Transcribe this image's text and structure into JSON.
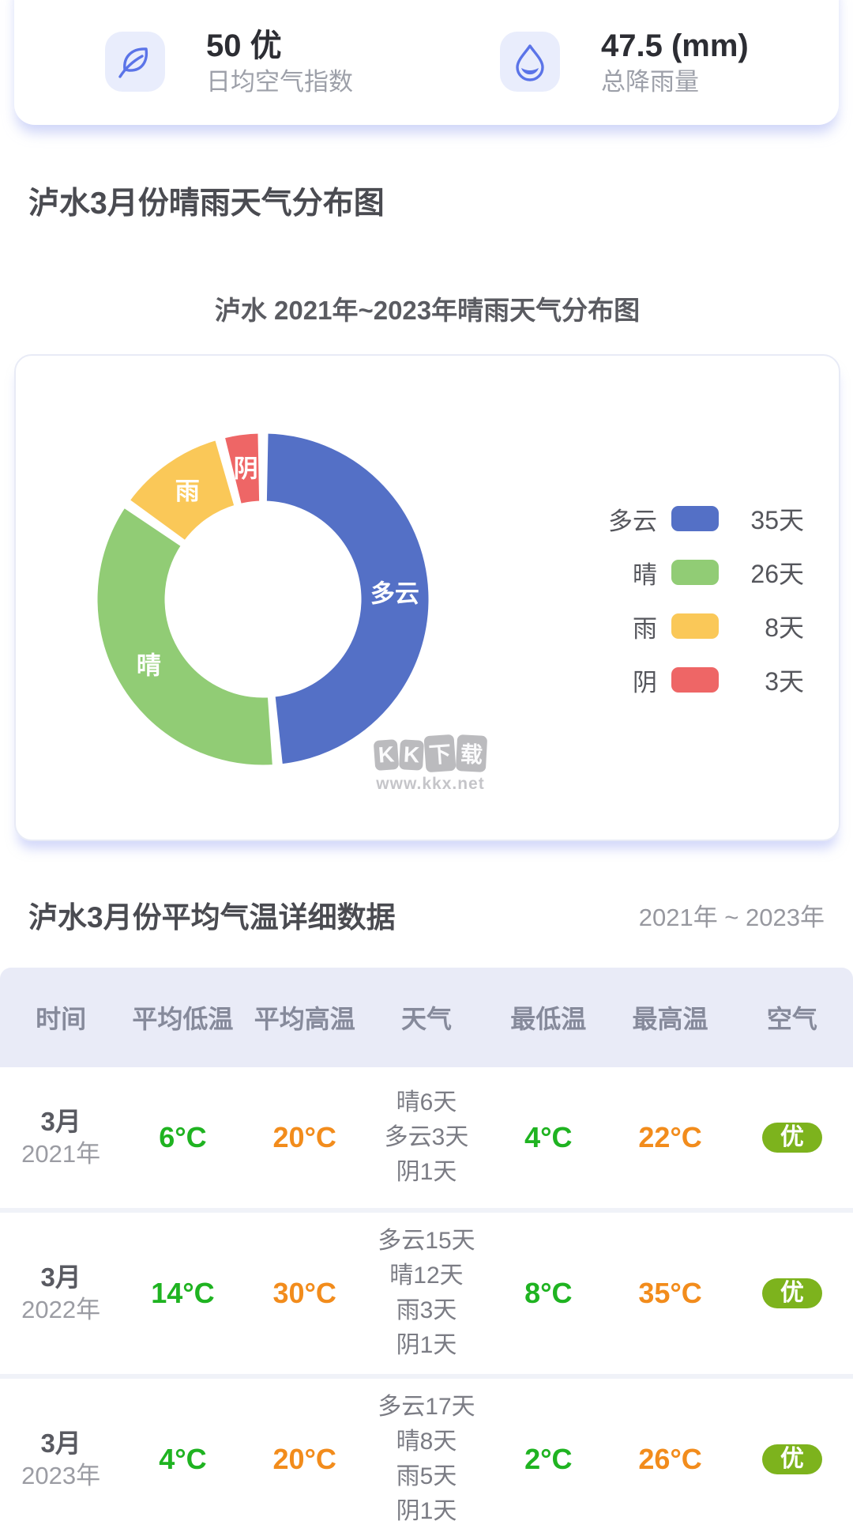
{
  "stats_card": {
    "air_quality": {
      "value": "50 优",
      "label": "日均空气指数"
    },
    "rainfall": {
      "value": "47.5 (mm)",
      "label": "总降雨量"
    }
  },
  "distribution_section": {
    "title": "泸水3月份晴雨天气分布图",
    "chart_title": "泸水 2021年~2023年晴雨天气分布图"
  },
  "chart_data": {
    "type": "pie",
    "title": "泸水 2021年~2023年晴雨天气分布图",
    "donut": true,
    "legend_position": "right",
    "unit": "天",
    "series": [
      {
        "name": "多云",
        "value": 35,
        "label": "35天",
        "color": "#5470c6"
      },
      {
        "name": "晴",
        "value": 26,
        "label": "26天",
        "color": "#91cc75"
      },
      {
        "name": "雨",
        "value": 8,
        "label": "8天",
        "color": "#fac858"
      },
      {
        "name": "阴",
        "value": 3,
        "label": "3天",
        "color": "#ee6666"
      }
    ]
  },
  "watermark": {
    "title": "KK下载",
    "url": "www.kkx.net"
  },
  "temperature_section": {
    "title": "泸水3月份平均气温详细数据",
    "year_range": "2021年 ~ 2023年"
  },
  "table": {
    "headers": [
      "时间",
      "平均低温",
      "平均高温",
      "天气",
      "最低温",
      "最高温",
      "空气"
    ],
    "rows": [
      {
        "month": "3月",
        "year": "2021年",
        "avg_low": "6°C",
        "avg_high": "20°C",
        "weather": [
          "晴6天",
          "多云3天",
          "阴1天"
        ],
        "min_temp": "4°C",
        "max_temp": "22°C",
        "air": "优"
      },
      {
        "month": "3月",
        "year": "2022年",
        "avg_low": "14°C",
        "avg_high": "30°C",
        "weather": [
          "多云15天",
          "晴12天",
          "雨3天",
          "阴1天"
        ],
        "min_temp": "8°C",
        "max_temp": "35°C",
        "air": "优"
      },
      {
        "month": "3月",
        "year": "2023年",
        "avg_low": "4°C",
        "avg_high": "20°C",
        "weather": [
          "多云17天",
          "晴8天",
          "雨5天",
          "阴1天"
        ],
        "min_temp": "2°C",
        "max_temp": "26°C",
        "air": "优"
      }
    ]
  },
  "colors": {
    "temp_low": "#1fb321",
    "temp_high": "#f28c1c",
    "air_badge": "#7db31d",
    "accent_blue": "#5b74e8",
    "icon_bg": "#e9edfc"
  }
}
